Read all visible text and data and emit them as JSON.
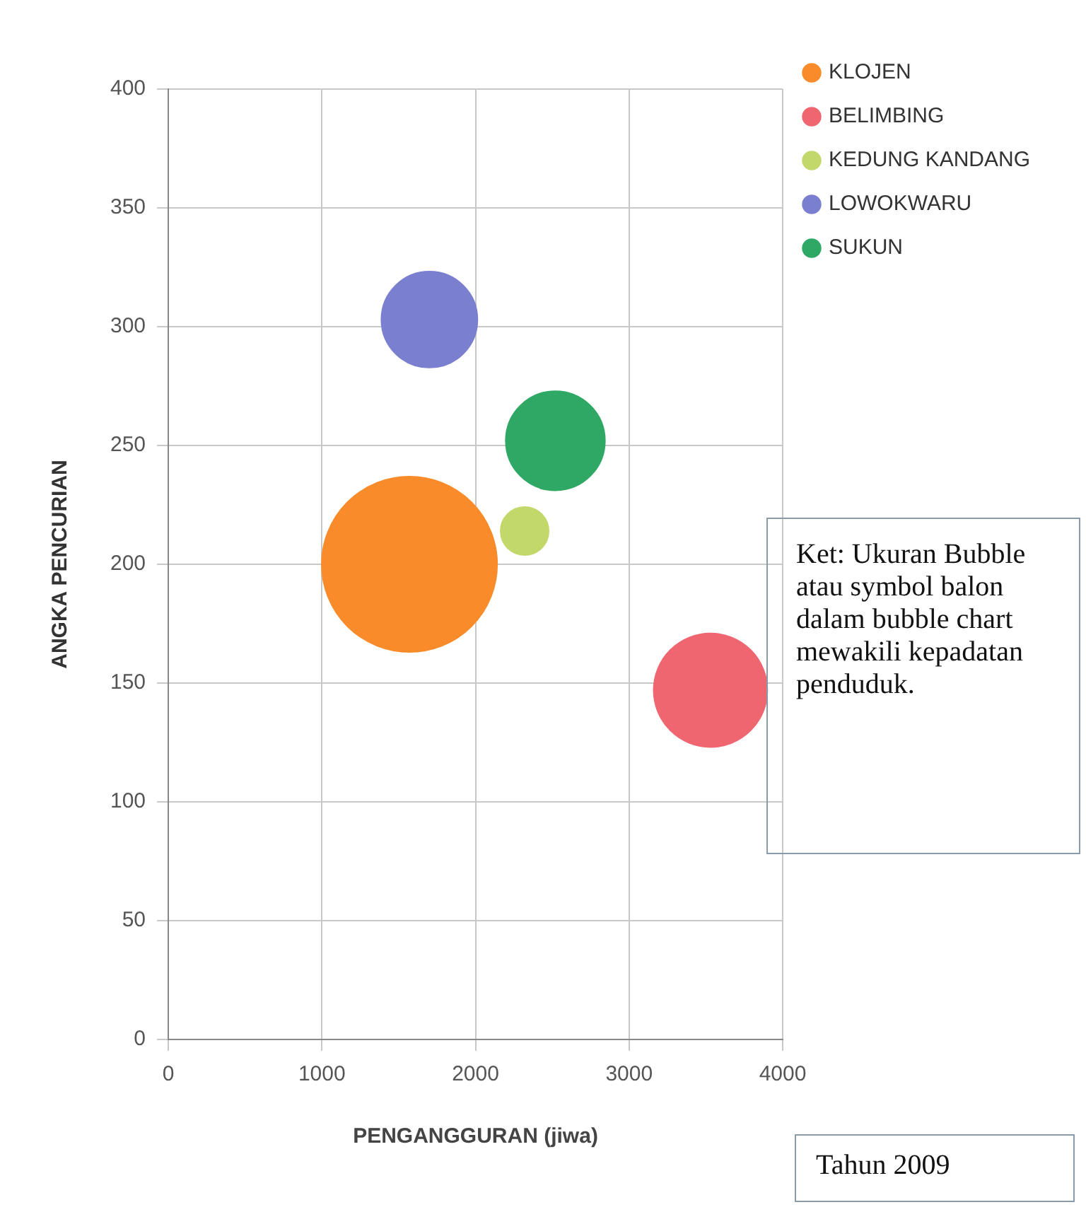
{
  "chart_data": {
    "type": "bubble",
    "xlabel": "PENGANGGURAN (jiwa)",
    "ylabel": "ANGKA PENCURIAN",
    "xlim": [
      0,
      4000
    ],
    "xticks": [
      0,
      1000,
      2000,
      3000,
      4000
    ],
    "ylim": [
      0,
      400
    ],
    "yticks": [
      0,
      50,
      100,
      150,
      200,
      250,
      300,
      350,
      400
    ],
    "grid": true,
    "legend": "top right",
    "marker": "circle",
    "series": [
      {
        "name": "KLOJEN",
        "color": "#f98b2a",
        "x": [
          1570
        ],
        "values": [
          200
        ],
        "sizes": [
          1
        ]
      },
      {
        "name": "BELIMBING",
        "color": "#ef6670",
        "x": [
          3530
        ],
        "values": [
          147
        ],
        "sizes": [
          0.42
        ]
      },
      {
        "name": "KEDUNG KANDANG",
        "color": "#c2d86a",
        "x": [
          2320
        ],
        "values": [
          214
        ],
        "sizes": [
          0.075
        ]
      },
      {
        "name": "LOWOKWARU",
        "color": "#7b7fd0",
        "x": [
          1700
        ],
        "values": [
          303
        ],
        "sizes": [
          0.3
        ]
      },
      {
        "name": "SUKUN",
        "color": "#2fa865",
        "x": [
          2520
        ],
        "values": [
          252
        ],
        "sizes": [
          0.32
        ]
      }
    ],
    "annotations": [
      "Ket: Ukuran Bubble atau symbol balon dalam bubble chart mewakili kepadatan penduduk.",
      "Tahun 2009"
    ]
  }
}
